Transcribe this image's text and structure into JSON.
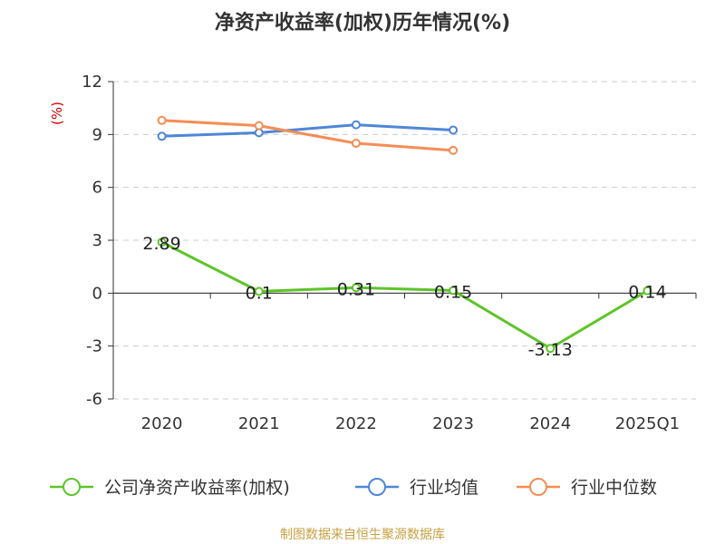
{
  "chart_data": {
    "type": "line",
    "title": "净资产收益率(加权)历年情况(%)",
    "y_unit": "(%)",
    "categories": [
      "2020",
      "2021",
      "2022",
      "2023",
      "2024",
      "2025Q1"
    ],
    "ylim": [
      -6,
      12
    ],
    "yticks": [
      12,
      9,
      6,
      3,
      0,
      -3,
      -6
    ],
    "grid": true,
    "legend_position": "bottom",
    "series": [
      {
        "name": "公司净资产收益率(加权)",
        "color": "#5ec42a",
        "values": [
          2.89,
          0.1,
          0.31,
          0.15,
          -3.13,
          0.14
        ],
        "labels": [
          "2.89",
          "0.1",
          "0.31",
          "0.15",
          "-3.13",
          "0.14"
        ]
      },
      {
        "name": "行业均值",
        "color": "#4f86d9",
        "values": [
          8.9,
          9.1,
          9.55,
          9.25,
          null,
          null
        ]
      },
      {
        "name": "行业中位数",
        "color": "#f58d55",
        "values": [
          9.8,
          9.5,
          8.5,
          8.1,
          null,
          null
        ]
      }
    ]
  },
  "source": "制图数据来自恒生聚源数据库"
}
